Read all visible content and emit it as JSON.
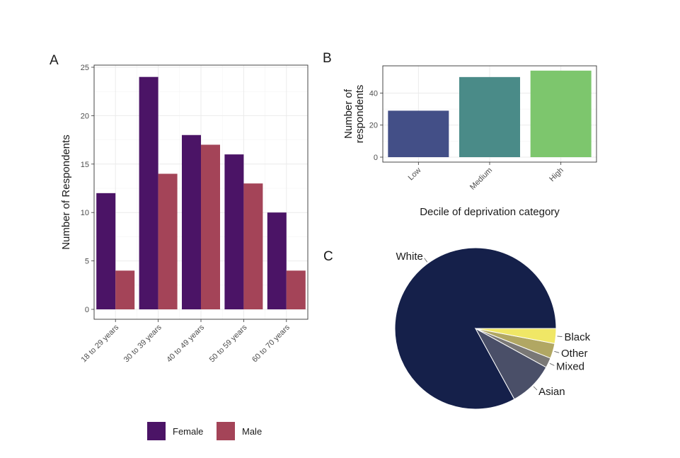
{
  "chart_data": [
    {
      "panel": "A",
      "type": "bar",
      "categories": [
        "18 to 29 years",
        "30 to 39 years",
        "40 to 49 years",
        "50 to 59 years",
        "60 to 70 years"
      ],
      "series": [
        {
          "name": "Female",
          "color": "#4b1466",
          "values": [
            12,
            24,
            18,
            16,
            10
          ]
        },
        {
          "name": "Male",
          "color": "#a44458",
          "values": [
            4,
            14,
            17,
            13,
            4
          ]
        }
      ],
      "xlabel": "",
      "ylabel": "Number of Respondents",
      "ylim": [
        0,
        25
      ],
      "yticks": [
        0,
        5,
        10,
        15,
        20,
        25
      ],
      "grid": true,
      "legend": "bottom"
    },
    {
      "panel": "B",
      "type": "bar",
      "categories": [
        "Low",
        "Medium",
        "High"
      ],
      "values": [
        29,
        50,
        54
      ],
      "colors": [
        "#434f87",
        "#4a8b88",
        "#7dc66d"
      ],
      "xlabel": "Decile of deprivation category",
      "ylabel": "Number of respondents",
      "ylabel_lines": [
        "Number of",
        "respondents"
      ],
      "ylim": [
        0,
        57
      ],
      "yticks": [
        0,
        20,
        40
      ],
      "grid": true
    },
    {
      "panel": "C",
      "type": "pie",
      "labels": [
        "White",
        "Asian",
        "Mixed",
        "Other",
        "Black"
      ],
      "values": [
        83,
        9,
        2,
        3,
        3
      ],
      "colors": [
        "#15204a",
        "#4a4f68",
        "#7a7876",
        "#b1a763",
        "#f0e766"
      ]
    }
  ]
}
